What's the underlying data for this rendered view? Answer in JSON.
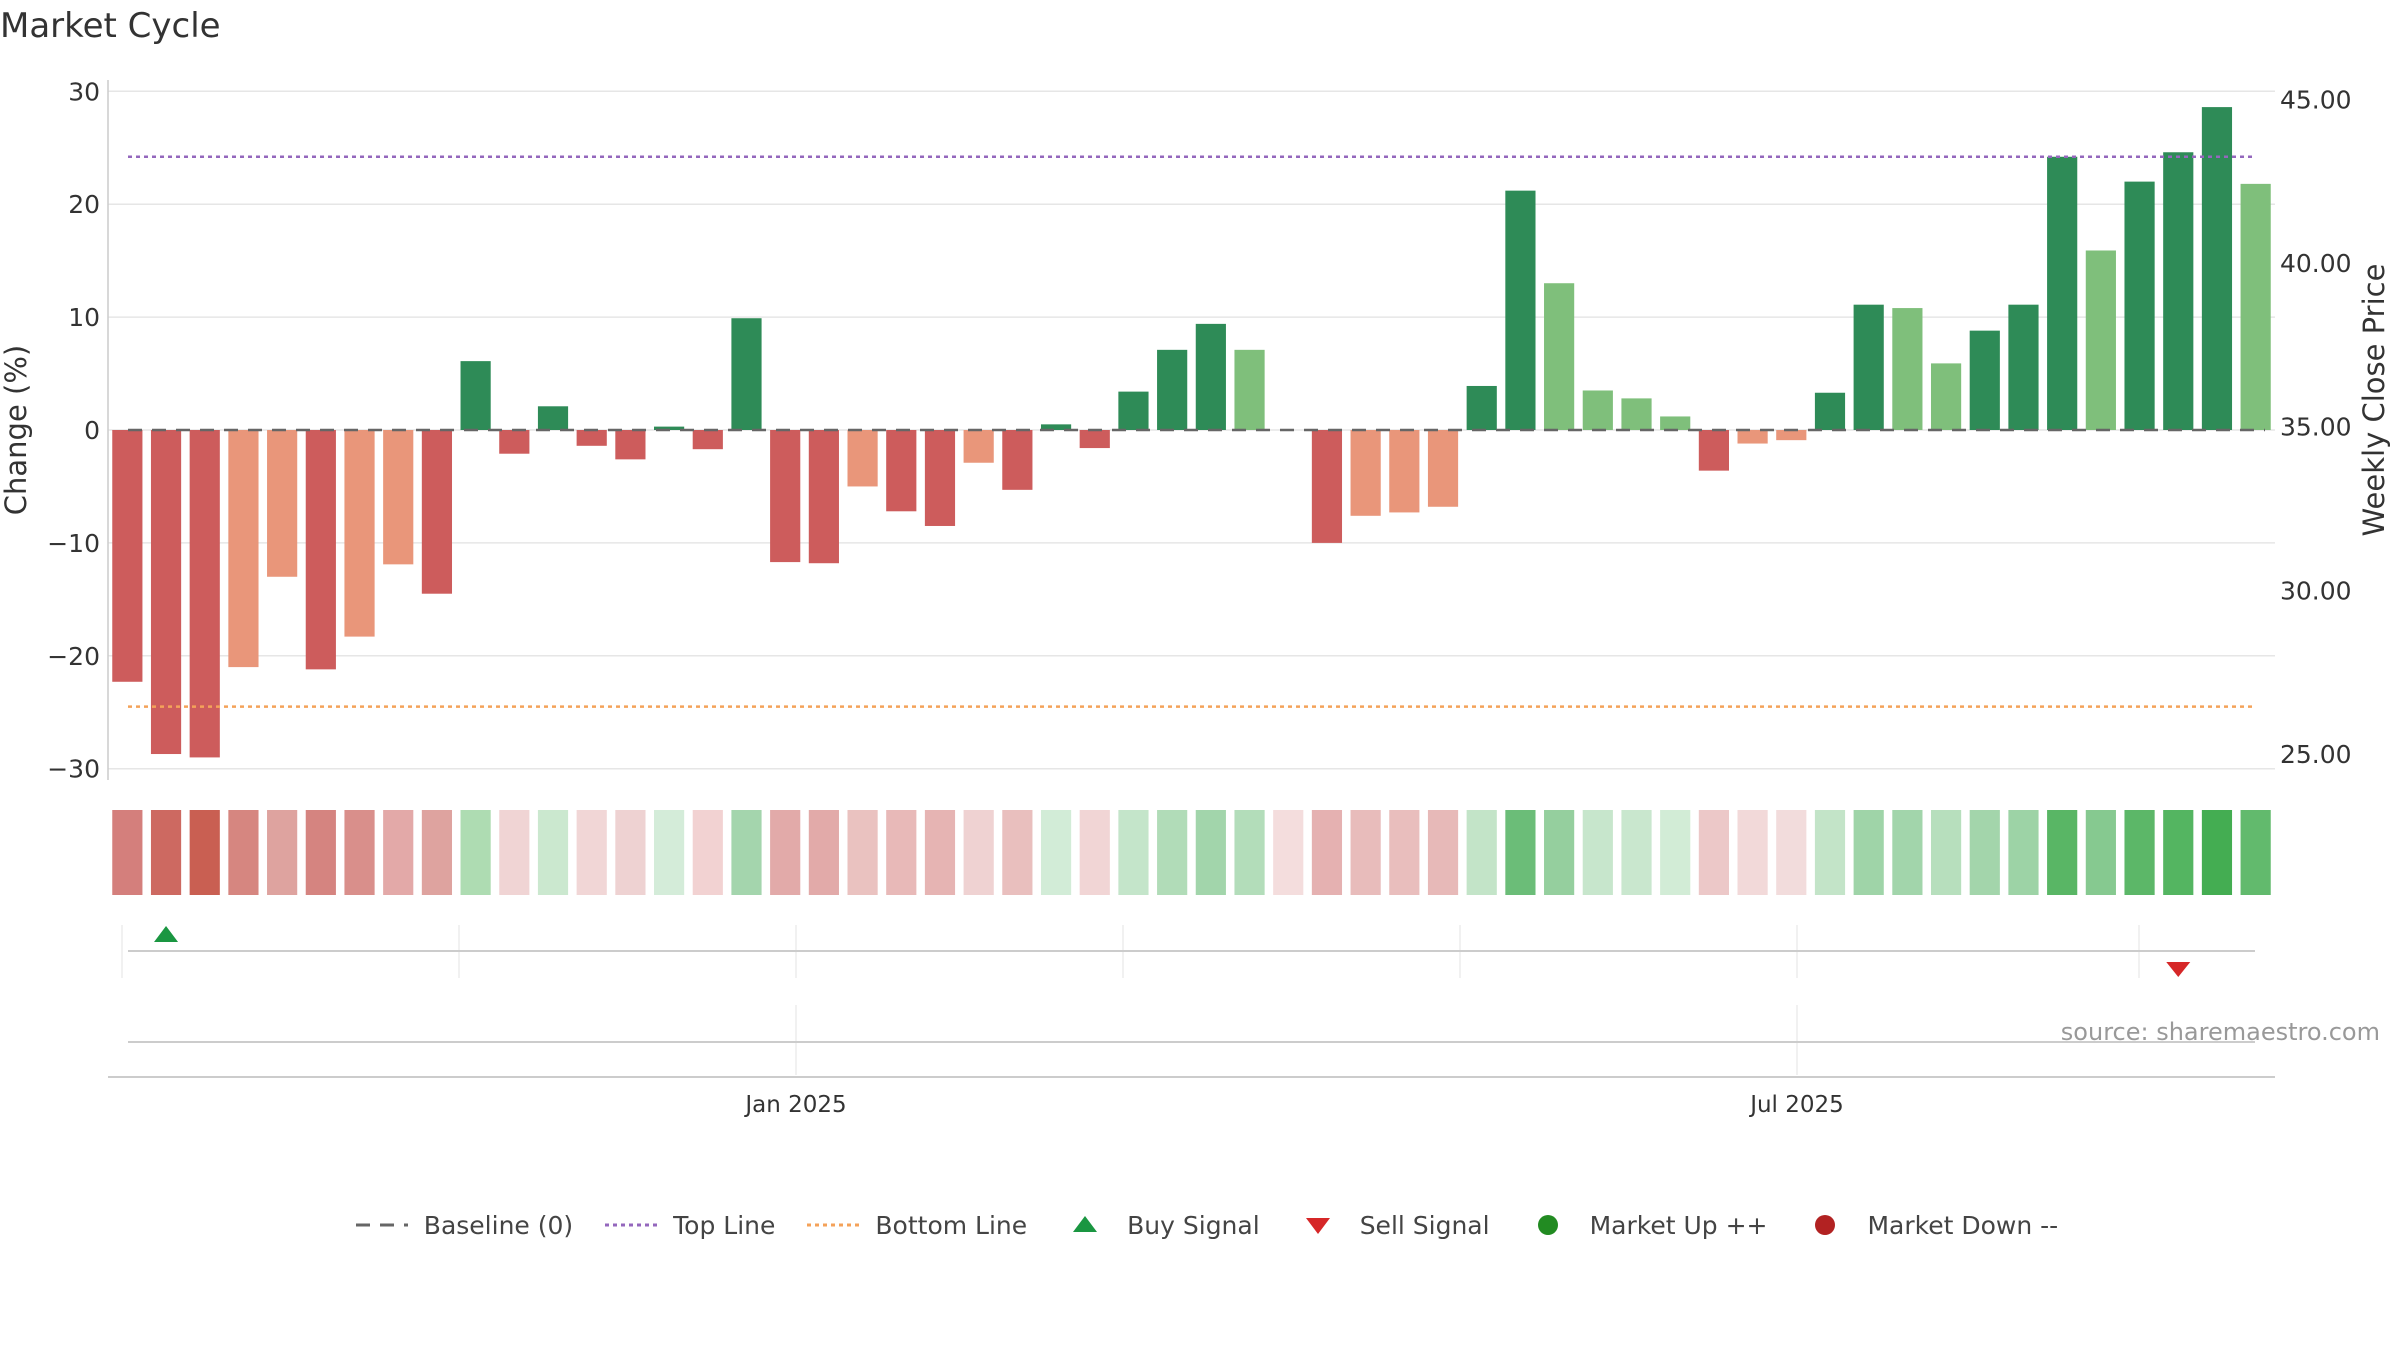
{
  "title": "Market Cycle",
  "source": "source: sharemaestro.com",
  "legend": [
    {
      "label": "Baseline (0)",
      "symbol": "dash",
      "color": "#666666"
    },
    {
      "label": "Top Line",
      "symbol": "dotted",
      "color": "#9467bd"
    },
    {
      "label": "Bottom Line",
      "symbol": "dotted",
      "color": "#f4a259"
    },
    {
      "label": "Buy Signal",
      "symbol": "triangle-up",
      "color": "#1a9641"
    },
    {
      "label": "Sell Signal",
      "symbol": "triangle-down",
      "color": "#d62728"
    },
    {
      "label": "Market Up ++",
      "symbol": "circle",
      "color": "#228b22"
    },
    {
      "label": "Market Down --",
      "symbol": "circle",
      "color": "#b22222"
    }
  ],
  "colors": {
    "up_strong": "#2e8b57",
    "up_light": "#7fbf7b",
    "down_strong": "#cd5c5c",
    "down_light": "#e9967a",
    "top_line": "#9467bd",
    "bottom_line": "#f4a259",
    "buy": "#1a9641",
    "sell": "#d62728"
  },
  "chart_data": {
    "type": "bar",
    "title": "Market Cycle",
    "ylabel": "Change (%)",
    "y2label": "Weekly Close Price",
    "ylim": [
      -31,
      31
    ],
    "yticks": [
      30,
      20,
      10,
      0,
      -10,
      -20,
      -30
    ],
    "ytick_labels": [
      "30",
      "20",
      "10",
      "0",
      "−10",
      "−20",
      "−30"
    ],
    "y2lim": [
      24.2,
      45.6
    ],
    "y2ticks": [
      45,
      40,
      35,
      30,
      25
    ],
    "y2tick_labels": [
      "45.00",
      "40.00",
      "35.00",
      "30.00",
      "25.00"
    ],
    "x_ticks": [
      "Jan 2025",
      "Jul 2025"
    ],
    "top_line": 24.2,
    "bottom_line": -24.5,
    "grid": true,
    "series": [
      {
        "values": [
          -22.3,
          -28.7,
          -29.0,
          -21.0,
          -13.0,
          -21.2,
          -18.3,
          -11.9,
          -14.5,
          6.1,
          -2.1,
          2.1,
          -1.4,
          -2.6,
          0.3,
          -1.7,
          9.9,
          -11.7,
          -11.8,
          -5.0,
          -7.2,
          -8.5,
          -2.9,
          -5.3,
          0.5,
          -1.6,
          3.4,
          7.1,
          9.4,
          7.1,
          0.0,
          -10.0,
          -7.6,
          -7.3,
          -6.8,
          3.9,
          21.2,
          13.0,
          3.5,
          2.8,
          1.2,
          -3.6,
          -1.2,
          -0.9,
          3.3,
          11.1,
          10.8,
          5.9,
          8.8,
          11.1,
          24.2,
          15.9,
          22.0,
          24.6,
          28.6,
          21.8
        ],
        "tone": [
          "down_strong",
          "down_strong",
          "down_strong",
          "down_light",
          "down_light",
          "down_strong",
          "down_light",
          "down_light",
          "down_strong",
          "up_strong",
          "down_strong",
          "up_strong",
          "down_strong",
          "down_strong",
          "up_strong",
          "down_strong",
          "up_strong",
          "down_strong",
          "down_strong",
          "down_light",
          "down_strong",
          "down_strong",
          "down_light",
          "down_strong",
          "up_strong",
          "down_strong",
          "up_strong",
          "up_strong",
          "up_strong",
          "up_light",
          "up_strong",
          "down_strong",
          "down_light",
          "down_light",
          "down_light",
          "up_strong",
          "up_strong",
          "up_light",
          "up_light",
          "up_light",
          "up_light",
          "down_strong",
          "down_light",
          "down_light",
          "up_strong",
          "up_strong",
          "up_light",
          "up_light",
          "up_strong",
          "up_strong",
          "up_strong",
          "up_light",
          "up_strong",
          "up_strong",
          "up_strong",
          "up_light"
        ]
      }
    ],
    "heat_strip": [
      "#d47f7c",
      "#cd6961",
      "#c95f52",
      "#d68680",
      "#dea39f",
      "#d58480",
      "#d98f8b",
      "#e3a9a8",
      "#dea39f",
      "#aedcb2",
      "#f0d4d4",
      "#cbe8cf",
      "#f1d6d6",
      "#eed2d2",
      "#d4ecd9",
      "#f2d2d2",
      "#a4d5ad",
      "#e2aaa9",
      "#e2aaa9",
      "#eac2c0",
      "#e8b9b8",
      "#e6b4b3",
      "#efd2d2",
      "#e9bfbe",
      "#d2ecd7",
      "#f1d5d5",
      "#c4e5ca",
      "#b1dcb8",
      "#a2d5ab",
      "#b3ddba",
      "#f4dddd",
      "#e5b1b1",
      "#e8bcbb",
      "#e9bebd",
      "#e7b9b8",
      "#c3e4c8",
      "#6bbd78",
      "#95cf9e",
      "#c7e6cc",
      "#c9e7ce",
      "#d2ecd6",
      "#ecc8c8",
      "#f2d9d9",
      "#f2dcdc",
      "#c3e4c8",
      "#9fd4a8",
      "#a2d5ab",
      "#b7dfbd",
      "#a3d5ab",
      "#9dd3a6",
      "#59b665",
      "#86c990",
      "#5cb768",
      "#54b561",
      "#44ad52",
      "#62ba6d"
    ],
    "buy_signals": [
      1
    ],
    "sell_signals": [
      53
    ]
  }
}
